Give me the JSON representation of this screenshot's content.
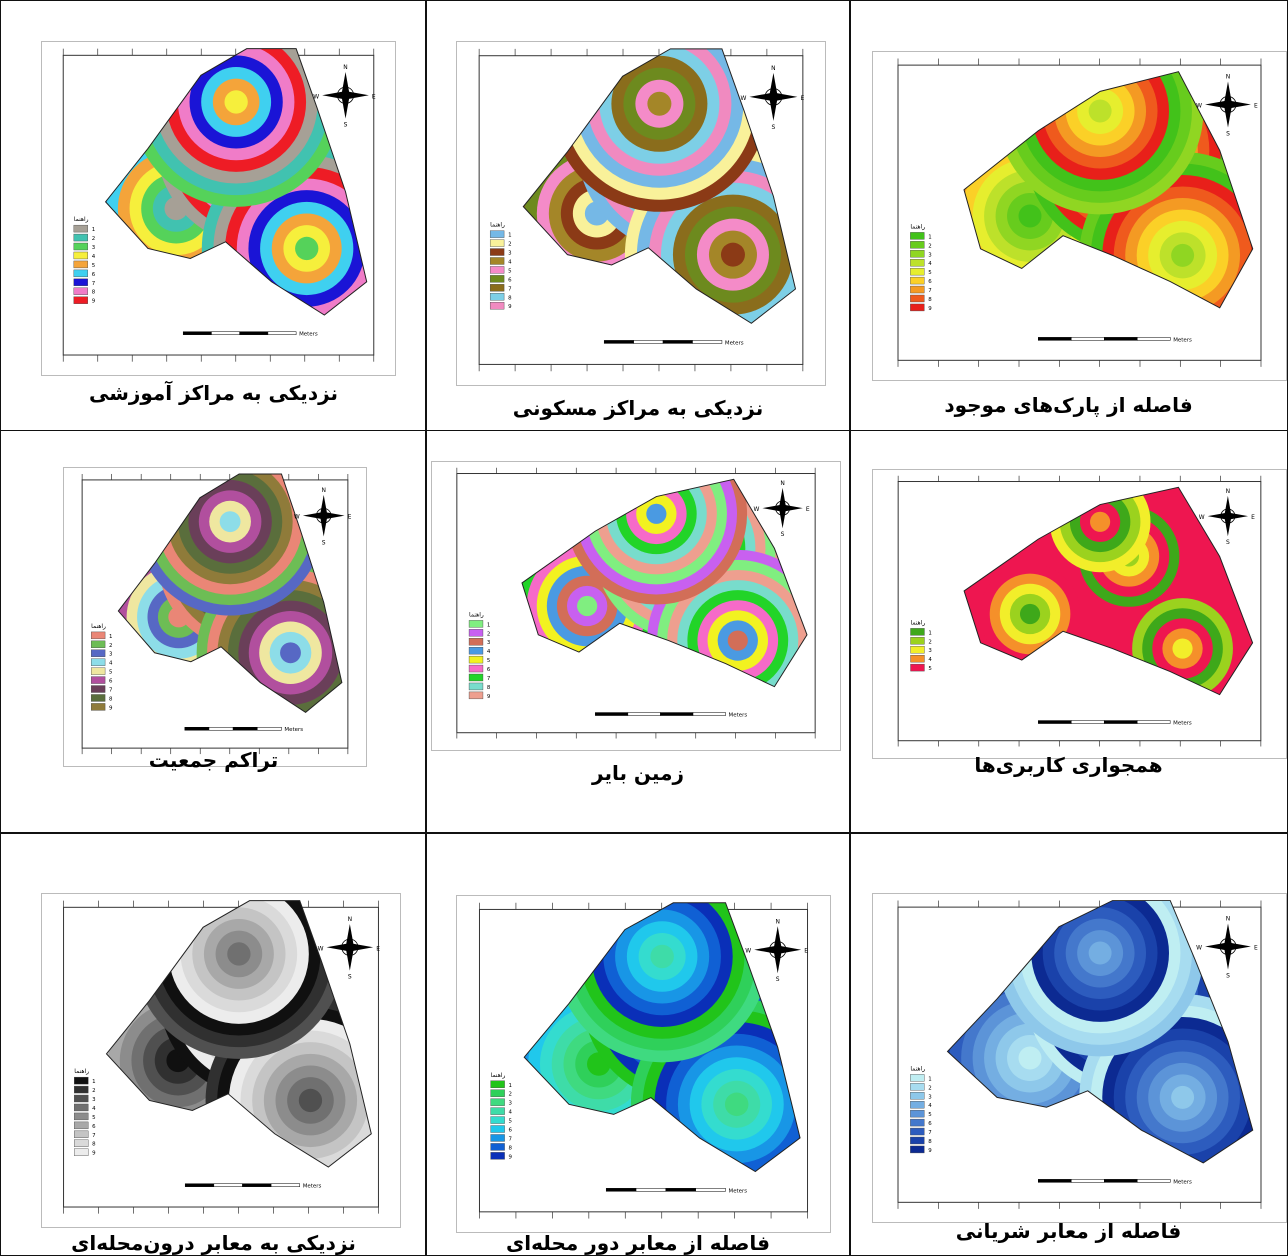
{
  "panels": [
    {
      "id": "p1",
      "caption": "نزدیکی به مراکز آموزشی",
      "palette": [
        "#a6a096",
        "#41c2b0",
        "#55d25a",
        "#f6ef3c",
        "#f4a43a",
        "#3fd0f0",
        "#1a14d6",
        "#f07cc8",
        "#ee1c25"
      ]
    },
    {
      "id": "p2",
      "caption": "نزدیکی به مراکز مسکونی",
      "palette": [
        "#75b8e6",
        "#f9f19a",
        "#8b3a16",
        "#a48628",
        "#f48bc8",
        "#6d8a1e",
        "#8a6d1c",
        "#7dcfe6",
        "#f08ac0"
      ]
    },
    {
      "id": "p3",
      "caption": "فاصله از پارک‌های موجود",
      "palette": [
        "#42c21a",
        "#67cc1d",
        "#90d622",
        "#bde12a",
        "#e6ee2e",
        "#fbd027",
        "#f49a23",
        "#ef5a1d",
        "#e8201a"
      ]
    },
    {
      "id": "p4",
      "caption": "تراکم جمعیت",
      "palette": [
        "#ea8676",
        "#6dbd55",
        "#5768c4",
        "#8ddde8",
        "#efe7a0",
        "#b14f9e",
        "#6a3f59",
        "#5a6e3c",
        "#8f7b3a"
      ]
    },
    {
      "id": "p5",
      "caption": "زمین بایر",
      "palette": [
        "#80ee80",
        "#c860f0",
        "#d26e58",
        "#4a9ae2",
        "#f2f220",
        "#f66ac8",
        "#22d428",
        "#78dccc",
        "#ee9f8f"
      ]
    },
    {
      "id": "p6",
      "caption": "همجواری کاربری‌ها",
      "palette": [
        "#3ea81a",
        "#9bd21e",
        "#f2ee2a",
        "#f5902a",
        "#ee1650"
      ]
    },
    {
      "id": "p7",
      "caption": "نزدیکی به معابر درون‌محله‌ای",
      "palette": [
        "#101010",
        "#303030",
        "#505050",
        "#707070",
        "#8c8c8c",
        "#a8a8a8",
        "#c4c4c4",
        "#dadada",
        "#ececec"
      ]
    },
    {
      "id": "p8",
      "caption": "فاصله از معابر دور محله‌ای",
      "palette": [
        "#21c41a",
        "#2fd05a",
        "#3fda80",
        "#3edca8",
        "#34dccf",
        "#20c8ec",
        "#1896e6",
        "#1060d4",
        "#0a2fb8"
      ]
    },
    {
      "id": "p9",
      "caption": "فاصله از معابر شریانی",
      "palette": [
        "#bfeef2",
        "#a7dcf0",
        "#8ec8ea",
        "#74aee2",
        "#5c94d8",
        "#4478cc",
        "#2d5cbe",
        "#1a42aa",
        "#0c2a92"
      ]
    }
  ],
  "common": {
    "legend_title": "راهنما",
    "legend_numbers": [
      "1",
      "2",
      "3",
      "4",
      "5",
      "6",
      "7",
      "8",
      "9"
    ],
    "scale_units": "Meters",
    "compass": {
      "n": "N",
      "s": "S",
      "e": "E",
      "w": "W"
    }
  }
}
